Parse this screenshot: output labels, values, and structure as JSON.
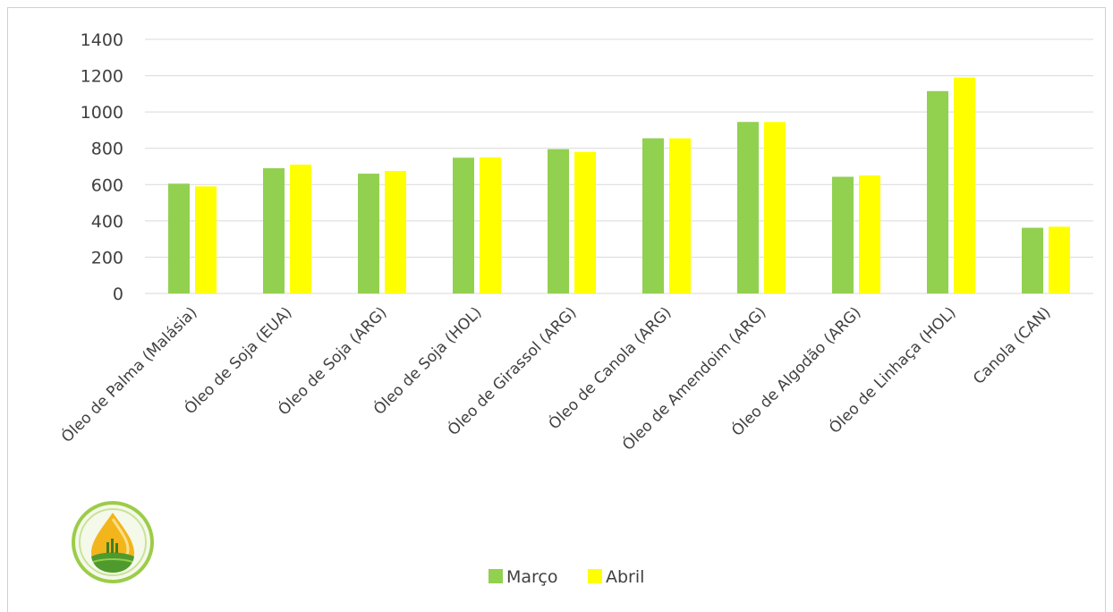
{
  "chart_data": {
    "type": "bar",
    "title": "",
    "xlabel": "",
    "ylabel": "",
    "ylim": [
      0,
      1400
    ],
    "yticks": [
      0,
      200,
      400,
      600,
      800,
      1000,
      1200,
      1400
    ],
    "grid": true,
    "legend_position": "bottom",
    "categories": [
      "Óleo de Palma (Malásia)",
      "Óleo de Soja (EUA)",
      "Óleo de Soja (ARG)",
      "Óleo de Soja (HOL)",
      "Óleo de Girassol (ARG)",
      "Óleo de Canola (ARG)",
      "Óleo de Amendoim (ARG)",
      "Óleo de Algodão (ARG)",
      "Óleo de Linhaça (HOL)",
      "Canola (CAN)"
    ],
    "series": [
      {
        "name": "Março",
        "color": "#92d050",
        "values": [
          605,
          690,
          660,
          748,
          795,
          855,
          945,
          643,
          1115,
          362
        ]
      },
      {
        "name": "Abril",
        "color": "#ffff00",
        "values": [
          590,
          710,
          675,
          750,
          780,
          855,
          945,
          650,
          1190,
          368
        ]
      }
    ]
  },
  "logo": {
    "icon": "oil-drop-logo"
  }
}
